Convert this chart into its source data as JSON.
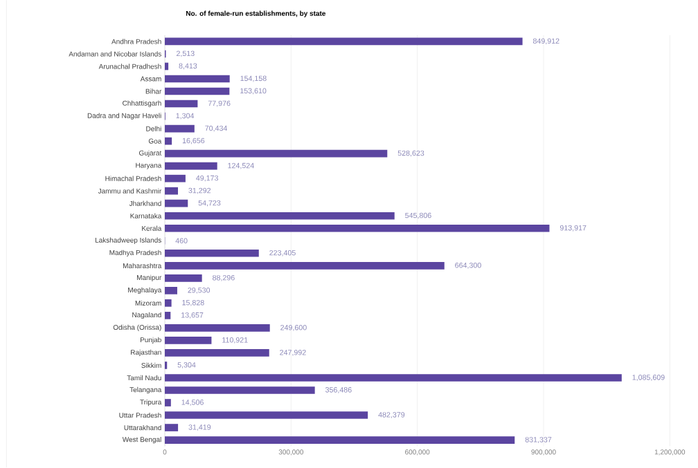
{
  "chart_data": {
    "type": "bar",
    "orientation": "horizontal",
    "title": "No. of female-run establishments, by state",
    "categories": [
      "Andhra Pradesh",
      "Andaman and Nicobar Islands",
      "Arunachal Pradhesh",
      "Assam",
      "Bihar",
      "Chhattisgarh",
      "Dadra and Nagar Haveli",
      "Delhi",
      "Goa",
      "Gujarat",
      "Haryana",
      "Himachal Pradesh",
      "Jammu and Kashmir",
      "Jharkhand",
      "Karnataka",
      "Kerala",
      "Lakshadweep Islands",
      "Madhya Pradesh",
      "Maharashtra",
      "Manipur",
      "Meghalaya",
      "Mizoram",
      "Nagaland",
      "Odisha (Orissa)",
      "Punjab",
      "Rajasthan",
      "Sikkim",
      "Tamil Nadu",
      "Telangana",
      "Tripura",
      "Uttar Pradesh",
      "Uttarakhand",
      "West Bengal"
    ],
    "values": [
      849912,
      2513,
      8413,
      154158,
      153610,
      77976,
      1304,
      70434,
      16656,
      528623,
      124524,
      49173,
      31292,
      54723,
      545806,
      913917,
      460,
      223405,
      664300,
      88296,
      29530,
      15828,
      13657,
      249600,
      110921,
      247992,
      5304,
      1085609,
      356486,
      14506,
      482379,
      31419,
      831337
    ],
    "value_labels": [
      "849,912",
      "2,513",
      "8,413",
      "154,158",
      "153,610",
      "77,976",
      "1,304",
      "70,434",
      "16,656",
      "528,623",
      "124,524",
      "49,173",
      "31,292",
      "54,723",
      "545,806",
      "913,917",
      "460",
      "223,405",
      "664,300",
      "88,296",
      "29,530",
      "15,828",
      "13,657",
      "249,600",
      "110,921",
      "247,992",
      "5,304",
      "1,085,609",
      "356,486",
      "14,506",
      "482,379",
      "31,419",
      "831,337"
    ],
    "color": "#5b45a0",
    "xlim": [
      0,
      1200000
    ],
    "xticks": [
      0,
      {
        "value": 300000,
        "label": "300,000"
      },
      {
        "value": 600000,
        "label": "600,000"
      },
      {
        "value": 900000,
        "label": "900,000"
      },
      {
        "value": 1200000,
        "label": "1,200,000"
      }
    ],
    "grid": "x"
  }
}
